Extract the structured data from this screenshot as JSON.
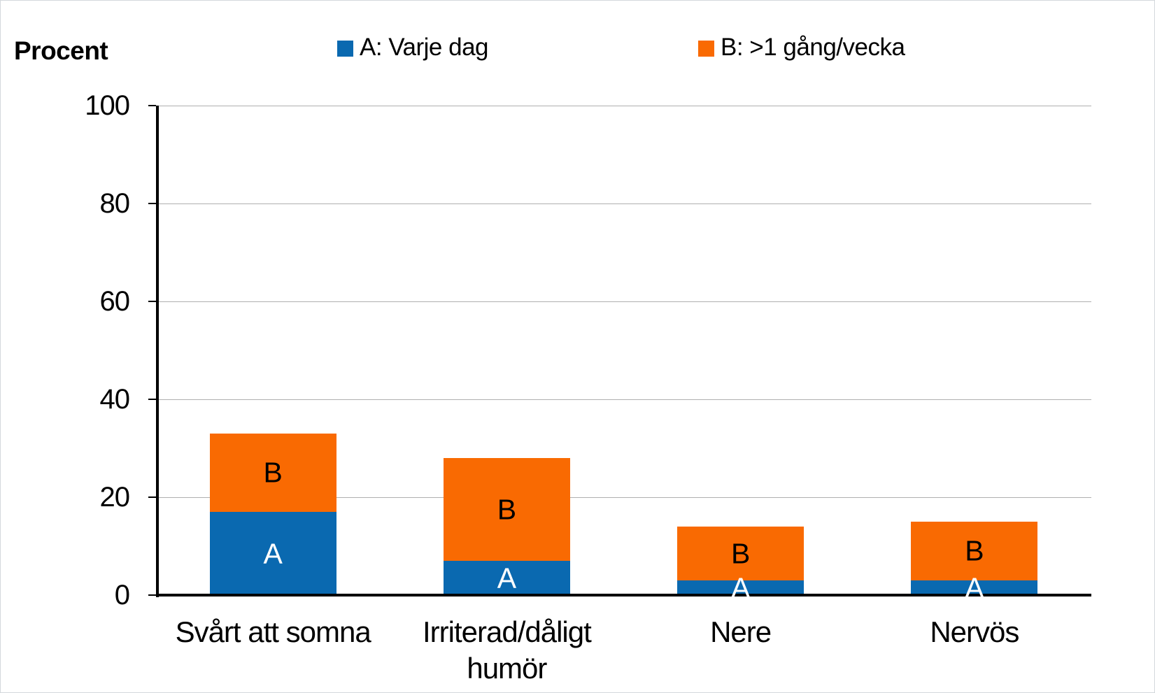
{
  "chart_data": {
    "type": "bar",
    "stacked": true,
    "title": "",
    "ylabel": "Procent",
    "xlabel": "",
    "categories": [
      "Svårt att somna",
      "Irriterad/dåligt humör",
      "Nere",
      "Nervös"
    ],
    "series": [
      {
        "name": "A: Varje dag",
        "letter": "A",
        "color": "#0a69b0",
        "values": [
          17,
          7,
          3,
          3
        ]
      },
      {
        "name": "B: >1 gång/vecka",
        "letter": "B",
        "color": "#f96a02",
        "values": [
          16,
          21,
          11,
          12
        ]
      }
    ],
    "stack_totals": [
      33,
      28,
      14,
      15
    ],
    "yticks": [
      0,
      20,
      40,
      60,
      80,
      100
    ],
    "ylim": [
      0,
      100
    ],
    "grid": true,
    "legend_position": "top",
    "colors": {
      "series_a": "#0a69b0",
      "series_b": "#f96a02",
      "gridline": "#afafaf",
      "axis": "#000000",
      "segment_label_a": "#ffffff",
      "segment_label_b": "#000000"
    }
  }
}
